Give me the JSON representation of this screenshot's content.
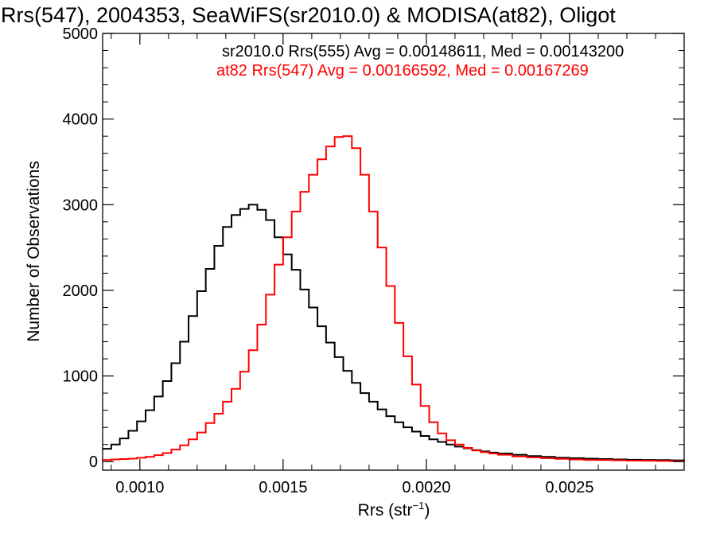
{
  "chart_data": {
    "type": "line",
    "step": "histogram",
    "title": "Rrs(547), 2004353, SeaWiFS(sr2010.0) & MODISA(at82), Oligot",
    "xlabel": "Rrs (str",
    "xlabel_sup": "−1",
    "xlabel_close": ")",
    "ylabel": "Number of Observations",
    "xlim": [
      0.00087,
      0.0029
    ],
    "ylim": [
      -100,
      5000
    ],
    "xticks": [
      0.001,
      0.0015,
      0.002,
      0.0025
    ],
    "xtick_labels": [
      "0.0010",
      "0.0015",
      "0.0020",
      "0.0025"
    ],
    "yticks": [
      0,
      1000,
      2000,
      3000,
      4000,
      5000
    ],
    "ytick_labels": [
      "0",
      "1000",
      "2000",
      "3000",
      "4000",
      "5000"
    ],
    "grid": false,
    "annotations": [
      {
        "text": "sr2010.0 Rrs(555) Avg = 0.00148611, Med = 0.00143200",
        "color": "#000000"
      },
      {
        "text": "at82 Rrs(547) Avg = 0.00166592, Med = 0.00167269",
        "color": "#ff0000"
      }
    ],
    "series": [
      {
        "color": "#000000",
        "x": [
          0.00087,
          0.0009,
          0.00093,
          0.00096,
          0.00099,
          0.00102,
          0.00105,
          0.00108,
          0.00111,
          0.00114,
          0.00117,
          0.0012,
          0.00123,
          0.00126,
          0.00129,
          0.00132,
          0.00135,
          0.00138,
          0.00141,
          0.00144,
          0.00147,
          0.0015,
          0.00153,
          0.00156,
          0.00159,
          0.00162,
          0.00165,
          0.00168,
          0.00171,
          0.00174,
          0.00177,
          0.0018,
          0.00183,
          0.00186,
          0.00189,
          0.00192,
          0.00195,
          0.00198,
          0.00201,
          0.00204,
          0.00207,
          0.0021,
          0.00213,
          0.00216,
          0.00219,
          0.00222,
          0.00225,
          0.0023,
          0.00235,
          0.0024,
          0.00245,
          0.0025,
          0.00255,
          0.0026,
          0.00265,
          0.0027,
          0.00275,
          0.0028,
          0.00285,
          0.0029
        ],
        "y": [
          150,
          200,
          270,
          360,
          470,
          600,
          760,
          940,
          1150,
          1400,
          1700,
          1990,
          2250,
          2520,
          2740,
          2880,
          2950,
          3000,
          2940,
          2820,
          2620,
          2420,
          2240,
          2010,
          1800,
          1580,
          1390,
          1220,
          1060,
          920,
          800,
          700,
          610,
          530,
          460,
          400,
          350,
          300,
          260,
          230,
          200,
          175,
          155,
          135,
          120,
          105,
          95,
          80,
          65,
          55,
          45,
          40,
          35,
          30,
          25,
          22,
          20,
          18,
          15,
          12
        ]
      },
      {
        "color": "#ff0000",
        "x": [
          0.00087,
          0.0009,
          0.00093,
          0.00096,
          0.00099,
          0.00102,
          0.00105,
          0.00108,
          0.00111,
          0.00114,
          0.00117,
          0.0012,
          0.00123,
          0.00126,
          0.00129,
          0.00132,
          0.00135,
          0.00138,
          0.00141,
          0.00144,
          0.00147,
          0.0015,
          0.00153,
          0.00156,
          0.00159,
          0.00162,
          0.00165,
          0.00168,
          0.00171,
          0.00174,
          0.00177,
          0.0018,
          0.00183,
          0.00186,
          0.00189,
          0.00192,
          0.00195,
          0.00198,
          0.00201,
          0.00204,
          0.00207,
          0.0021,
          0.00213,
          0.00216,
          0.00219,
          0.00222,
          0.00225,
          0.0023,
          0.00235,
          0.0024,
          0.00245,
          0.0025,
          0.00255,
          0.0026,
          0.00265,
          0.0027,
          0.00275,
          0.0028,
          0.00285,
          0.0029
        ],
        "y": [
          20,
          25,
          30,
          35,
          45,
          55,
          75,
          100,
          140,
          190,
          260,
          340,
          450,
          560,
          700,
          850,
          1050,
          1300,
          1600,
          1950,
          2300,
          2620,
          2920,
          3150,
          3350,
          3530,
          3680,
          3790,
          3800,
          3660,
          3350,
          2920,
          2500,
          2050,
          1620,
          1230,
          900,
          650,
          460,
          330,
          250,
          200,
          160,
          130,
          110,
          95,
          80,
          60,
          50,
          40,
          32,
          26,
          20,
          18,
          15,
          12,
          10,
          8,
          6,
          5
        ]
      }
    ]
  }
}
